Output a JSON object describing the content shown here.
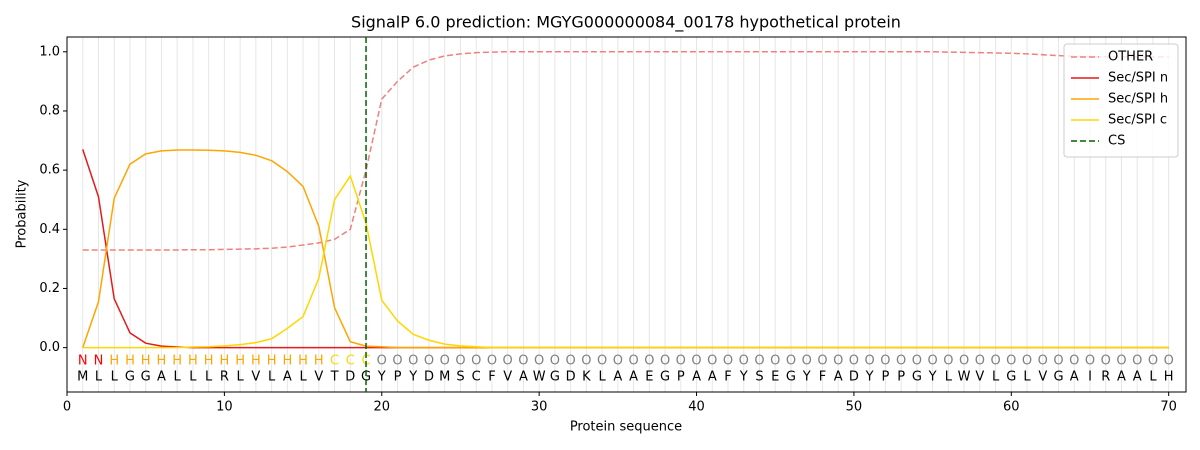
{
  "chart_data": {
    "type": "line",
    "title": "SignalP 6.0 prediction: MGYG000000084_00178 hypothetical protein",
    "xlabel": "Protein sequence",
    "ylabel": "Probability",
    "xlim": [
      0,
      71.1
    ],
    "ylim": [
      -0.15,
      1.05
    ],
    "xticks": [
      0,
      10,
      20,
      30,
      40,
      50,
      60,
      70
    ],
    "yticks": [
      {
        "value": 0,
        "label": "0.0"
      },
      0.2,
      0.4,
      0.6,
      0.8,
      {
        "value": 1,
        "label": "1.0"
      }
    ],
    "xgrid": true,
    "legend": "upper right",
    "x": [
      1,
      2,
      3,
      4,
      5,
      6,
      7,
      8,
      9,
      10,
      11,
      12,
      13,
      14,
      15,
      16,
      17,
      18,
      19,
      20,
      21,
      22,
      23,
      24,
      25,
      26,
      27,
      28,
      29,
      30,
      31,
      32,
      33,
      34,
      35,
      36,
      37,
      38,
      39,
      40,
      41,
      42,
      43,
      44,
      45,
      46,
      47,
      48,
      49,
      50,
      51,
      52,
      53,
      54,
      55,
      56,
      57,
      58,
      59,
      60,
      61,
      62,
      63,
      64,
      65,
      66,
      67,
      68,
      69,
      70
    ],
    "series": [
      {
        "name": "OTHER",
        "color": "#f08080",
        "style": "dashed",
        "values": [
          0.33,
          0.33,
          0.33,
          0.33,
          0.33,
          0.33,
          0.33,
          0.331,
          0.331,
          0.332,
          0.333,
          0.334,
          0.336,
          0.34,
          0.347,
          0.354,
          0.366,
          0.4,
          0.6,
          0.84,
          0.9,
          0.948,
          0.972,
          0.986,
          0.993,
          0.997,
          0.999,
          1,
          1,
          1,
          1,
          1,
          1,
          1,
          1,
          1,
          1,
          1,
          1,
          1,
          1,
          1,
          1,
          1,
          1,
          1,
          1,
          1,
          1,
          1,
          1,
          1,
          1,
          1,
          1,
          0.999,
          0.998,
          0.997,
          0.996,
          0.995,
          0.993,
          0.99,
          0.987,
          0.985,
          0.984,
          0.983,
          0.983,
          0.983,
          0.983,
          0.983
        ]
      },
      {
        "name": "Sec/SPI n",
        "color": "#e31a1c",
        "style": "solid",
        "values": [
          0.67,
          0.51,
          0.165,
          0.05,
          0.015,
          0.005,
          0.002,
          0,
          0,
          0,
          0,
          0,
          0,
          0,
          0,
          0,
          0,
          0,
          0,
          0,
          0,
          0,
          0,
          0,
          0,
          0,
          0,
          0,
          0,
          0,
          0,
          0,
          0,
          0,
          0,
          0,
          0,
          0,
          0,
          0,
          0,
          0,
          0,
          0,
          0,
          0,
          0,
          0,
          0,
          0,
          0,
          0,
          0,
          0,
          0,
          0,
          0,
          0,
          0,
          0,
          0,
          0,
          0,
          0,
          0,
          0,
          0,
          0,
          0,
          0
        ]
      },
      {
        "name": "Sec/SPI h",
        "color": "#ffa500",
        "style": "solid",
        "values": [
          0,
          0.155,
          0.505,
          0.62,
          0.655,
          0.665,
          0.668,
          0.668,
          0.667,
          0.665,
          0.66,
          0.65,
          0.632,
          0.595,
          0.545,
          0.41,
          0.135,
          0.02,
          0.005,
          0.003,
          0,
          0,
          0,
          0,
          0,
          0,
          0,
          0,
          0,
          0,
          0,
          0,
          0,
          0,
          0,
          0,
          0,
          0,
          0,
          0,
          0,
          0,
          0,
          0,
          0,
          0,
          0,
          0,
          0,
          0,
          0,
          0,
          0,
          0,
          0,
          0,
          0,
          0,
          0,
          0,
          0,
          0,
          0,
          0,
          0,
          0,
          0,
          0,
          0,
          0
        ]
      },
      {
        "name": "Sec/SPI c",
        "color": "#ffd700",
        "style": "solid",
        "values": [
          0,
          0,
          0,
          0,
          0,
          0,
          0,
          0.002,
          0.003,
          0.006,
          0.01,
          0.017,
          0.03,
          0.065,
          0.105,
          0.235,
          0.5,
          0.58,
          0.42,
          0.16,
          0.09,
          0.045,
          0.025,
          0.012,
          0.006,
          0.003,
          0,
          0,
          0,
          0,
          0,
          0,
          0,
          0,
          0,
          0,
          0,
          0,
          0,
          0,
          0,
          0,
          0,
          0,
          0,
          0,
          0,
          0,
          0,
          0,
          0,
          0,
          0,
          0,
          0,
          0,
          0,
          0,
          0,
          0,
          0,
          0,
          0,
          0,
          0,
          0,
          0,
          0,
          0,
          0
        ]
      }
    ],
    "cs": {
      "name": "CS",
      "x": 19,
      "color": "#006400"
    },
    "labels": [
      "N",
      "N",
      "H",
      "H",
      "H",
      "H",
      "H",
      "H",
      "H",
      "H",
      "H",
      "H",
      "H",
      "H",
      "H",
      "H",
      "C",
      "C",
      "C",
      "O",
      "O",
      "O",
      "O",
      "O",
      "O",
      "O",
      "O",
      "O",
      "O",
      "O",
      "O",
      "O",
      "O",
      "O",
      "O",
      "O",
      "O",
      "O",
      "O",
      "O",
      "O",
      "O",
      "O",
      "O",
      "O",
      "O",
      "O",
      "O",
      "O",
      "O",
      "O",
      "O",
      "O",
      "O",
      "O",
      "O",
      "O",
      "O",
      "O",
      "O",
      "O",
      "O",
      "O",
      "O",
      "O",
      "O",
      "O",
      "O",
      "O",
      "O"
    ],
    "label_colors": {
      "N": "#ff0000",
      "H": "#ffa500",
      "C": "#ffd700",
      "O": "#808080"
    },
    "sequence": [
      "M",
      "L",
      "L",
      "G",
      "G",
      "A",
      "L",
      "L",
      "L",
      "R",
      "L",
      "V",
      "L",
      "A",
      "L",
      "V",
      "T",
      "D",
      "G",
      "Y",
      "P",
      "Y",
      "D",
      "M",
      "S",
      "C",
      "F",
      "V",
      "A",
      "W",
      "G",
      "D",
      "K",
      "L",
      "A",
      "A",
      "E",
      "G",
      "P",
      "A",
      "A",
      "F",
      "Y",
      "S",
      "E",
      "G",
      "Y",
      "F",
      "A",
      "D",
      "Y",
      "P",
      "P",
      "G",
      "Y",
      "L",
      "W",
      "V",
      "L",
      "G",
      "L",
      "V",
      "G",
      "A",
      "I",
      "R",
      "A",
      "A",
      "L",
      "H"
    ]
  }
}
